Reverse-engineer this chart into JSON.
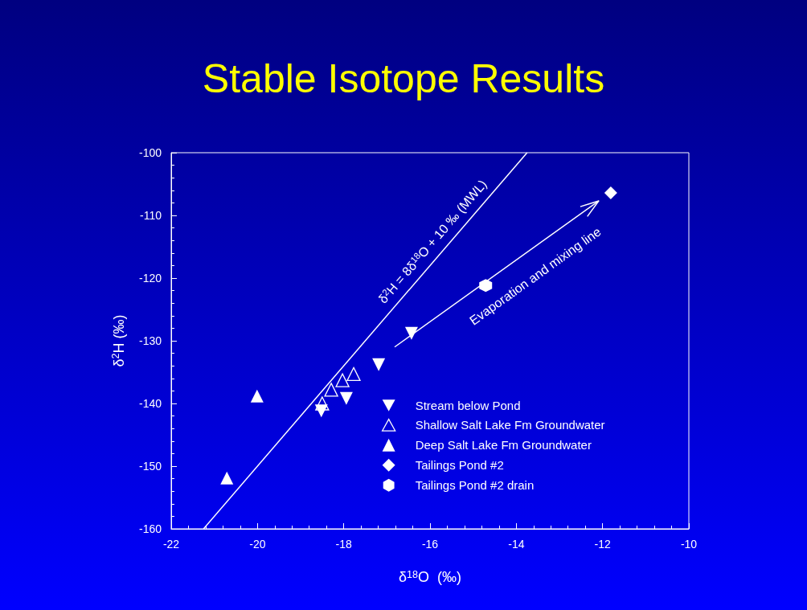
{
  "chart_data": {
    "type": "scatter",
    "title": "Stable Isotope Results",
    "xlabel": "δ$^{18}$O  (‰)",
    "ylabel": "δ$^{2}$H (‰)",
    "xlim": [
      -22,
      -10
    ],
    "xticks": [
      -22,
      -20,
      -18,
      -16,
      -14,
      -12,
      -10
    ],
    "ylim": [
      -160,
      -100
    ],
    "yticks": [
      -160,
      -150,
      -140,
      -130,
      -120,
      -110,
      -100
    ],
    "grid": false,
    "legend": "bottom right",
    "series": [
      {
        "name": "Stream below Pond",
        "color": "#ffffff",
        "marker": "triangle-down",
        "x": [
          -18.52,
          -17.94,
          -17.19,
          -16.43
        ],
        "values": [
          -141.2,
          -139.2,
          -133.8,
          -128.8
        ]
      },
      {
        "name": "Shallow Salt Lake Fm Groundwater",
        "color": "#ffffff",
        "marker": "triangle-open",
        "x": [
          -18.5,
          -18.29,
          -18.03,
          -17.77
        ],
        "values": [
          -140.0,
          -137.8,
          -136.3,
          -135.3
        ]
      },
      {
        "name": "Deep Salt Lake Fm Groundwater",
        "color": "#ffffff",
        "marker": "triangle",
        "x": [
          -20.01,
          -20.71
        ],
        "values": [
          -138.8,
          -151.9
        ]
      },
      {
        "name": "Tailings Pond #2",
        "color": "#ffffff",
        "marker": "diamond",
        "x": [
          -11.81
        ],
        "values": [
          -106.4
        ]
      },
      {
        "name": "Tailings Pond #2 drain",
        "color": "#ffffff",
        "x": [
          -14.71
        ],
        "values": [
          -121.2
        ]
      },
      {
        "type": "line",
        "color": "#ffffff",
        "marker": "none",
        "x": [
          -21.25,
          -13.75
        ],
        "values": [
          -160,
          -100
        ]
      }
    ],
    "annotations": [
      "δ$^{2}$H = 8δ$^{18}$O + 10 ‰ (MWL)",
      "Evaporation and mixing line"
    ]
  }
}
